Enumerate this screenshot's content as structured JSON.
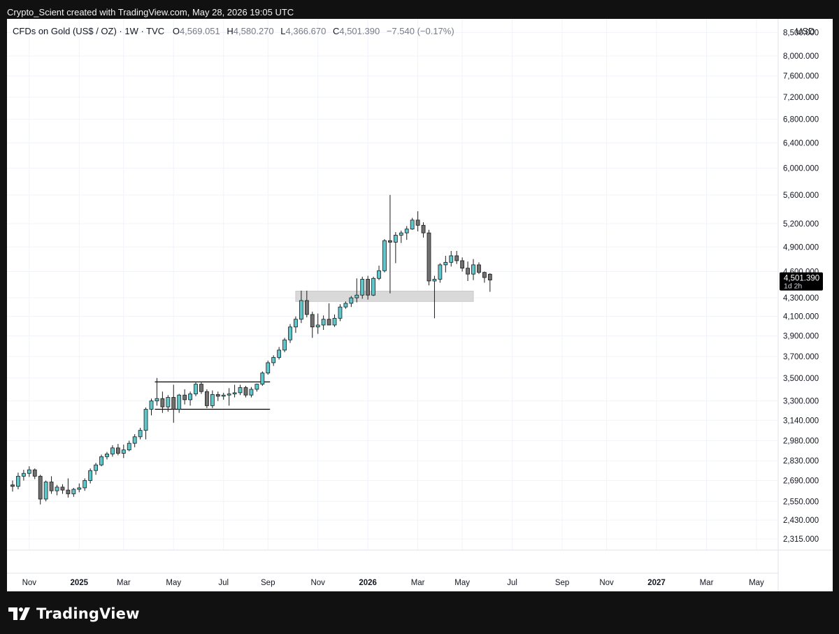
{
  "header": {
    "credit": "Crypto_Scient created with TradingView.com, May 28, 2026 19:05 UTC"
  },
  "brand": {
    "name": "TradingView",
    "logo_icon": "tradingview-logo-icon"
  },
  "colors": {
    "up": "#5fc7cc",
    "down": "#707070",
    "grid": "#f0f3fa",
    "axis_text": "#131722",
    "zone": "#d9d9d9",
    "price_label_bg": "#000000"
  },
  "chart_data": {
    "type": "candlestick",
    "symbol_text": "CFDs on Gold (US$ / OZ) · 1W · TVC",
    "ohlc_labels": {
      "o_label": "O",
      "o_value": "4,569.051",
      "h_label": "H",
      "h_value": "4,580.270",
      "l_label": "L",
      "l_value": "4,366.670",
      "c_label": "C",
      "c_value": "4,501.390",
      "change": "−7.540 (−0.17%)"
    },
    "currency": "USD",
    "scale": "log",
    "ylim": [
      2250,
      8800
    ],
    "y_ticks": [
      {
        "value": 8500,
        "label": "8,500.000"
      },
      {
        "value": 8000,
        "label": "8,000.000"
      },
      {
        "value": 7600,
        "label": "7,600.000"
      },
      {
        "value": 7200,
        "label": "7,200.000"
      },
      {
        "value": 6800,
        "label": "6,800.000"
      },
      {
        "value": 6400,
        "label": "6,400.000"
      },
      {
        "value": 6000,
        "label": "6,000.000"
      },
      {
        "value": 5600,
        "label": "5,600.000"
      },
      {
        "value": 5200,
        "label": "5,200.000"
      },
      {
        "value": 4900,
        "label": "4,900.000"
      },
      {
        "value": 4600,
        "label": "4,600.000"
      },
      {
        "value": 4300,
        "label": "4,300.000"
      },
      {
        "value": 4100,
        "label": "4,100.000"
      },
      {
        "value": 3900,
        "label": "3,900.000"
      },
      {
        "value": 3700,
        "label": "3,700.000"
      },
      {
        "value": 3500,
        "label": "3,500.000"
      },
      {
        "value": 3300,
        "label": "3,300.000"
      },
      {
        "value": 3140,
        "label": "3,140.000"
      },
      {
        "value": 2980,
        "label": "2,980.000"
      },
      {
        "value": 2830,
        "label": "2,830.000"
      },
      {
        "value": 2690,
        "label": "2,690.000"
      },
      {
        "value": 2550,
        "label": "2,550.000"
      },
      {
        "value": 2430,
        "label": "2,430.000"
      },
      {
        "value": 2315,
        "label": "2,315.000"
      }
    ],
    "x_ticks": [
      {
        "index": 3,
        "label": "Nov",
        "bold": false
      },
      {
        "index": 12,
        "label": "2025",
        "bold": true
      },
      {
        "index": 20,
        "label": "Mar",
        "bold": false
      },
      {
        "index": 29,
        "label": "May",
        "bold": false
      },
      {
        "index": 38,
        "label": "Jul",
        "bold": false
      },
      {
        "index": 46,
        "label": "Sep",
        "bold": false
      },
      {
        "index": 55,
        "label": "Nov",
        "bold": false
      },
      {
        "index": 64,
        "label": "2026",
        "bold": true
      },
      {
        "index": 73,
        "label": "Mar",
        "bold": false
      },
      {
        "index": 81,
        "label": "May",
        "bold": false
      },
      {
        "index": 90,
        "label": "Jul",
        "bold": false
      },
      {
        "index": 99,
        "label": "Sep",
        "bold": false
      },
      {
        "index": 107,
        "label": "Nov",
        "bold": false
      },
      {
        "index": 116,
        "label": "2027",
        "bold": true
      },
      {
        "index": 125,
        "label": "Mar",
        "bold": false
      },
      {
        "index": 134,
        "label": "May",
        "bold": false
      }
    ],
    "candles": [
      [
        2660,
        2690,
        2615,
        2650
      ],
      [
        2650,
        2745,
        2630,
        2720
      ],
      [
        2720,
        2765,
        2690,
        2740
      ],
      [
        2740,
        2790,
        2715,
        2765
      ],
      [
        2765,
        2775,
        2700,
        2720
      ],
      [
        2720,
        2730,
        2530,
        2565
      ],
      [
        2565,
        2690,
        2550,
        2680
      ],
      [
        2680,
        2720,
        2600,
        2620
      ],
      [
        2620,
        2660,
        2590,
        2645
      ],
      [
        2645,
        2665,
        2600,
        2625
      ],
      [
        2625,
        2705,
        2575,
        2600
      ],
      [
        2600,
        2640,
        2580,
        2630
      ],
      [
        2630,
        2670,
        2610,
        2640
      ],
      [
        2640,
        2705,
        2620,
        2690
      ],
      [
        2690,
        2775,
        2670,
        2760
      ],
      [
        2760,
        2815,
        2730,
        2800
      ],
      [
        2800,
        2875,
        2790,
        2860
      ],
      [
        2860,
        2895,
        2840,
        2880
      ],
      [
        2880,
        2945,
        2860,
        2925
      ],
      [
        2925,
        2955,
        2870,
        2885
      ],
      [
        2885,
        2950,
        2850,
        2910
      ],
      [
        2910,
        2980,
        2900,
        2960
      ],
      [
        2960,
        3030,
        2930,
        3010
      ],
      [
        3010,
        3080,
        2990,
        3060
      ],
      [
        3060,
        3245,
        2990,
        3230
      ],
      [
        3230,
        3320,
        3180,
        3300
      ],
      [
        3300,
        3500,
        3260,
        3320
      ],
      [
        3320,
        3380,
        3200,
        3250
      ],
      [
        3250,
        3350,
        3210,
        3330
      ],
      [
        3330,
        3440,
        3120,
        3230
      ],
      [
        3230,
        3360,
        3200,
        3350
      ],
      [
        3350,
        3400,
        3270,
        3310
      ],
      [
        3310,
        3380,
        3260,
        3360
      ],
      [
        3360,
        3460,
        3340,
        3445
      ],
      [
        3445,
        3460,
        3360,
        3380
      ],
      [
        3380,
        3400,
        3240,
        3260
      ],
      [
        3260,
        3390,
        3240,
        3355
      ],
      [
        3355,
        3380,
        3300,
        3340
      ],
      [
        3340,
        3370,
        3310,
        3350
      ],
      [
        3350,
        3410,
        3260,
        3360
      ],
      [
        3360,
        3440,
        3330,
        3370
      ],
      [
        3370,
        3440,
        3350,
        3415
      ],
      [
        3415,
        3430,
        3330,
        3350
      ],
      [
        3350,
        3420,
        3330,
        3400
      ],
      [
        3400,
        3450,
        3380,
        3445
      ],
      [
        3445,
        3560,
        3430,
        3545
      ],
      [
        3545,
        3660,
        3530,
        3640
      ],
      [
        3640,
        3710,
        3610,
        3690
      ],
      [
        3690,
        3790,
        3670,
        3760
      ],
      [
        3760,
        3880,
        3740,
        3860
      ],
      [
        3860,
        4020,
        3830,
        3990
      ],
      [
        3990,
        4100,
        3930,
        4070
      ],
      [
        4070,
        4380,
        4030,
        4270
      ],
      [
        4270,
        4380,
        4090,
        4120
      ],
      [
        4120,
        4150,
        3880,
        3990
      ],
      [
        3990,
        4130,
        3920,
        4010
      ],
      [
        4010,
        4110,
        3960,
        4070
      ],
      [
        4070,
        4240,
        4040,
        4010
      ],
      [
        4010,
        4120,
        3990,
        4080
      ],
      [
        4080,
        4230,
        4050,
        4200
      ],
      [
        4200,
        4260,
        4180,
        4240
      ],
      [
        4240,
        4320,
        4200,
        4300
      ],
      [
        4300,
        4520,
        4250,
        4330
      ],
      [
        4330,
        4540,
        4290,
        4510
      ],
      [
        4510,
        4550,
        4280,
        4330
      ],
      [
        4330,
        4540,
        4320,
        4520
      ],
      [
        4520,
        4670,
        4500,
        4610
      ],
      [
        4610,
        5000,
        4590,
        4980
      ],
      [
        4980,
        5600,
        4350,
        4960
      ],
      [
        4960,
        5090,
        4700,
        5050
      ],
      [
        5050,
        5110,
        4950,
        5080
      ],
      [
        5080,
        5170,
        4990,
        5130
      ],
      [
        5130,
        5280,
        5120,
        5250
      ],
      [
        5250,
        5370,
        5100,
        5180
      ],
      [
        5180,
        5220,
        5020,
        5080
      ],
      [
        5080,
        5120,
        4440,
        4490
      ],
      [
        4490,
        4550,
        4080,
        4510
      ],
      [
        4510,
        4700,
        4470,
        4680
      ],
      [
        4680,
        4790,
        4590,
        4710
      ],
      [
        4710,
        4850,
        4660,
        4790
      ],
      [
        4790,
        4850,
        4690,
        4730
      ],
      [
        4730,
        4770,
        4600,
        4640
      ],
      [
        4640,
        4720,
        4490,
        4570
      ],
      [
        4570,
        4750,
        4500,
        4680
      ],
      [
        4680,
        4710,
        4570,
        4590
      ],
      [
        4590,
        4600,
        4470,
        4530
      ],
      [
        4569,
        4580,
        4367,
        4501
      ]
    ],
    "annotations": {
      "range_box": {
        "start": 26,
        "end": 46,
        "top": 3465,
        "bottom": 3230
      },
      "support_zone": {
        "start": 51,
        "end": 83,
        "top": 4375,
        "bottom": 4260
      }
    },
    "last_price": {
      "value": 4501.39,
      "label": "4,501.390",
      "countdown": "1d 2h"
    }
  }
}
